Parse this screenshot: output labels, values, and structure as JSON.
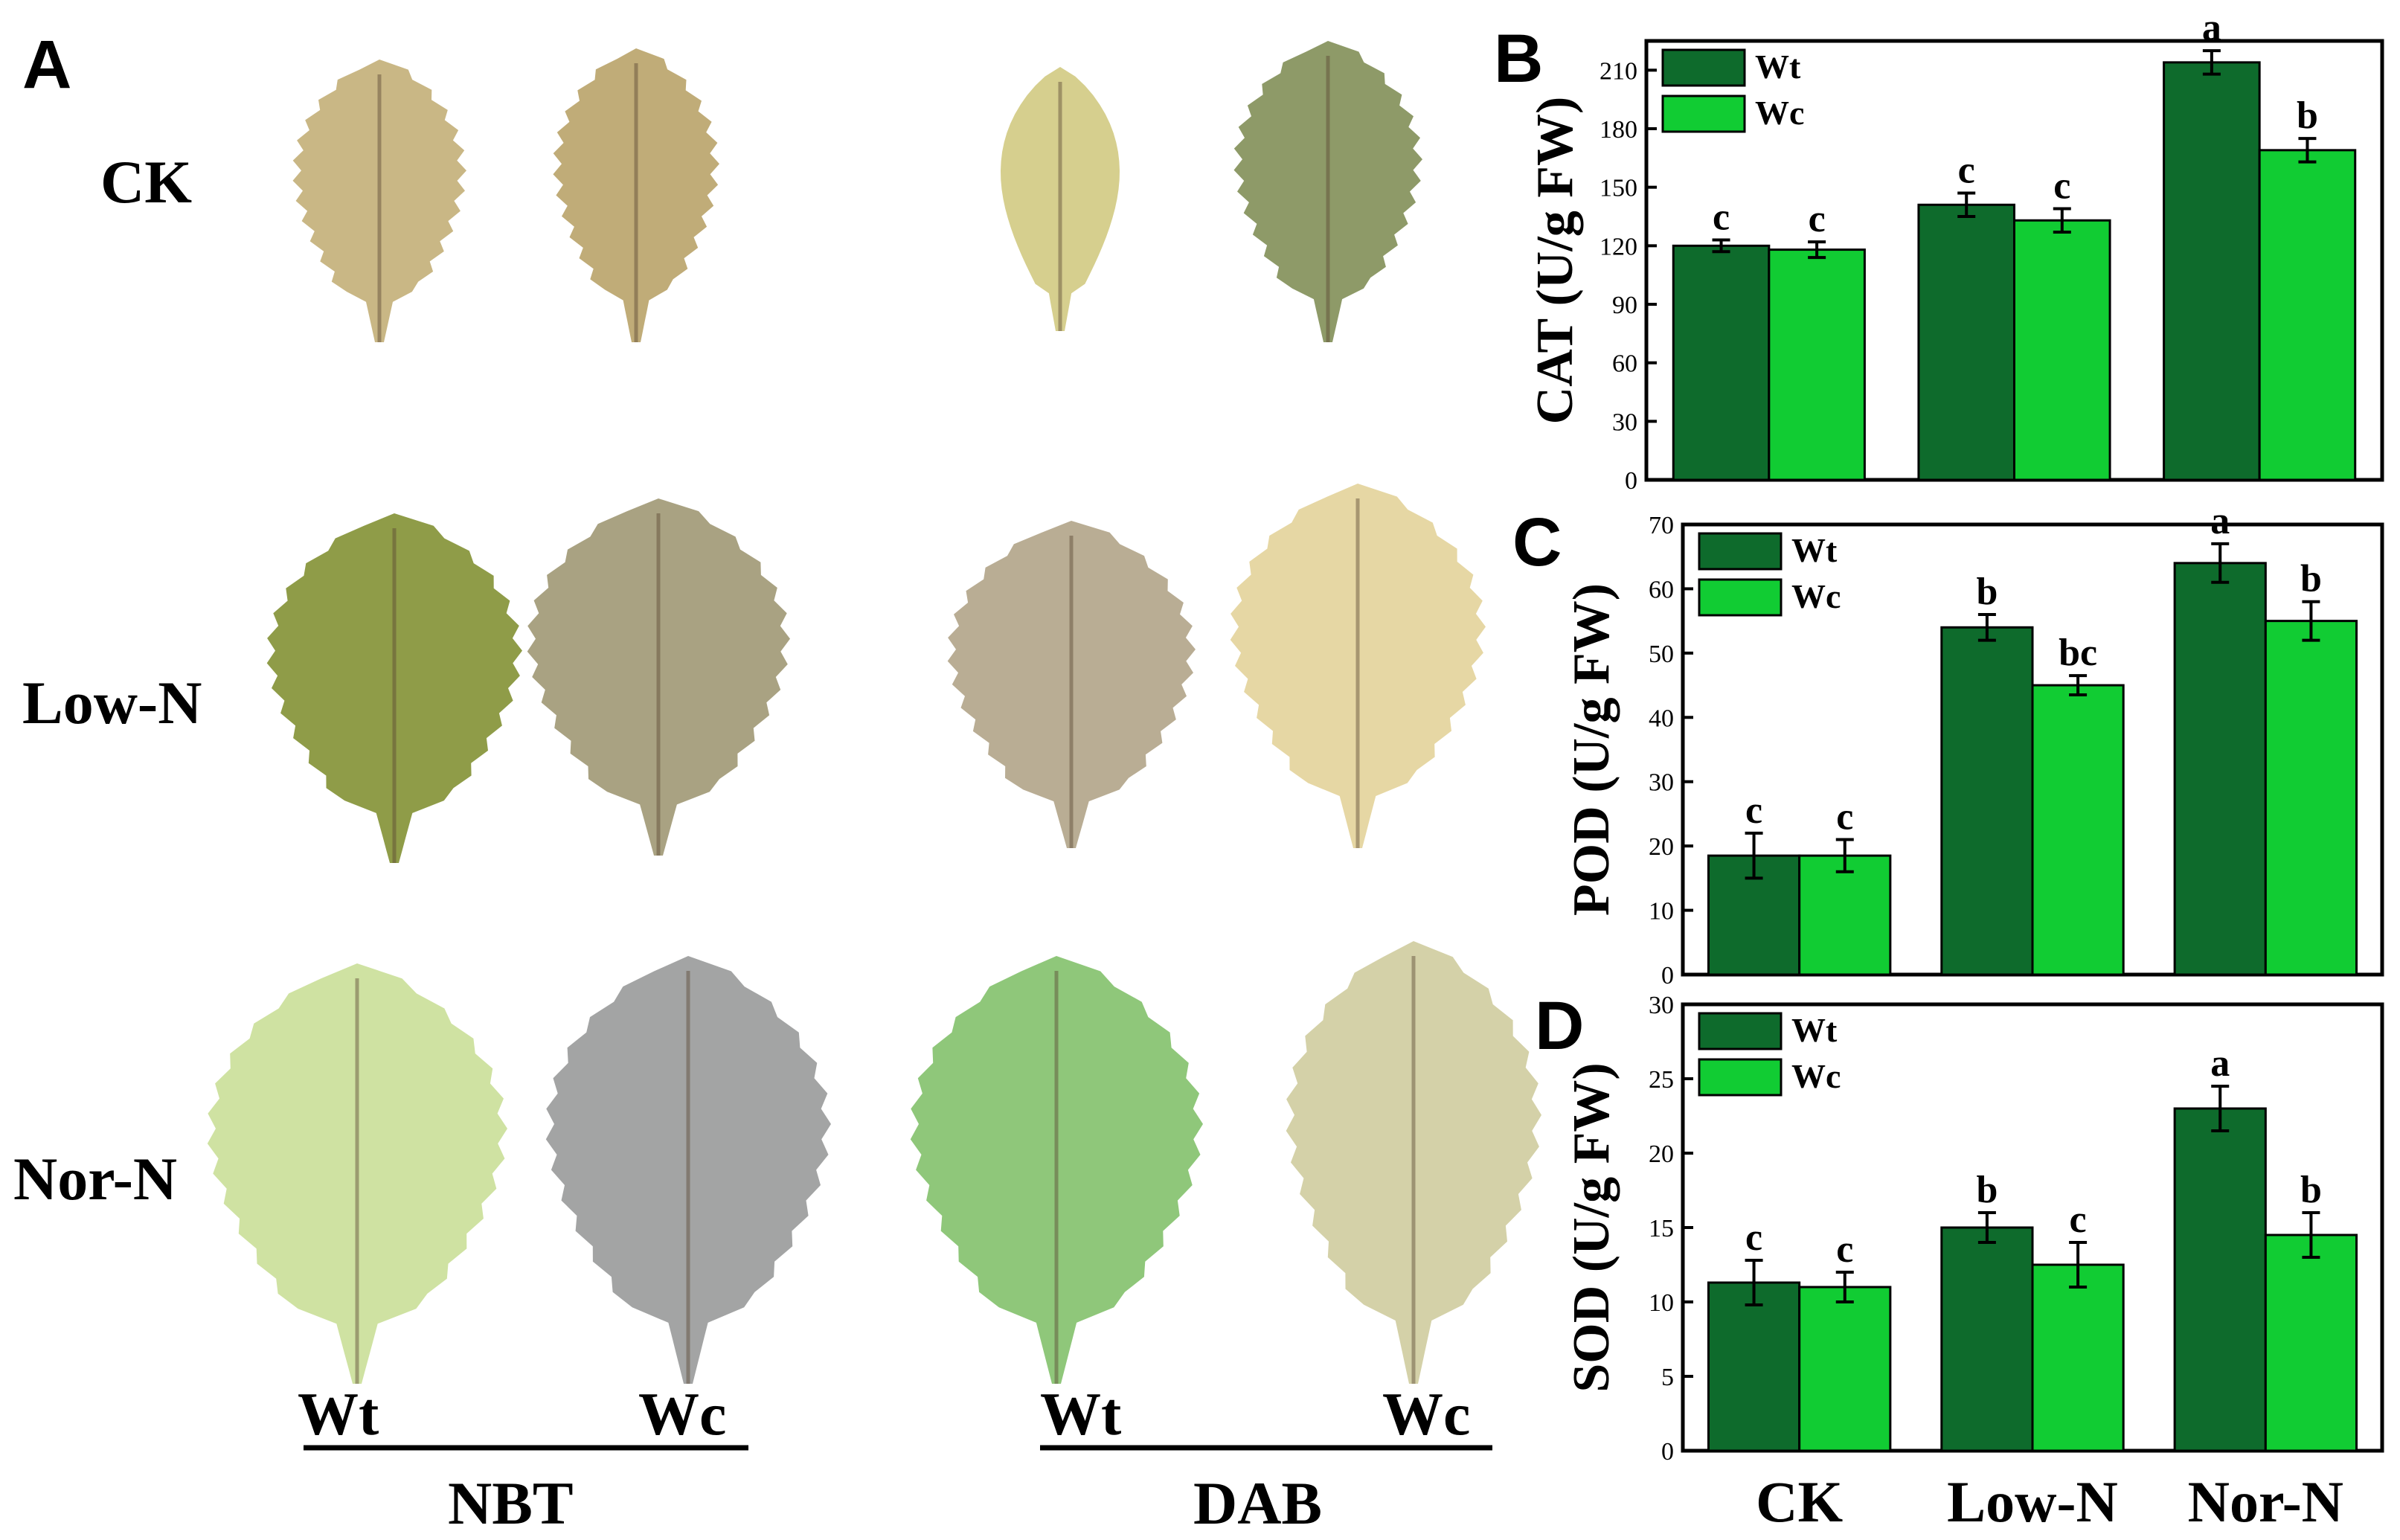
{
  "panel_a": {
    "letter": "A",
    "rows": [
      "CK",
      "Low-N",
      "Nor-N"
    ],
    "group_labels": {
      "nbt": {
        "wt": "Wt",
        "wc": "Wc",
        "stain": "NBT"
      },
      "dab": {
        "wt": "Wt",
        "wc": "Wc",
        "stain": "DAB"
      }
    },
    "leaf_colors": {
      "ck_nbt_wt": "#c9b785",
      "ck_nbt_wc": "#c0ac78",
      "ck_dab_wt": "#d6cf8e",
      "ck_dab_wc": "#8e9a68",
      "low_nbt_wt": "#8f9c48",
      "low_nbt_wc": "#a9a282",
      "low_dab_wt": "#b9ad94",
      "low_dab_wc": "#e6d7a4",
      "nor_nbt_wt": "#cfe2a2",
      "nor_nbt_wc": "#a3a4a4",
      "nor_dab_wt": "#8fc77a",
      "nor_dab_wc": "#d4d1a8"
    }
  },
  "colors": {
    "wt": "#0e6b2c",
    "wc": "#11cc33"
  },
  "chart_data": [
    {
      "panel": "B",
      "type": "bar",
      "ylabel": "CAT (U/g FW)",
      "categories": [
        "CK",
        "Low-N",
        "Nor-N"
      ],
      "yticks": [
        "0",
        "30",
        "60",
        "90",
        "120",
        "150",
        "180",
        "210"
      ],
      "ylim": [
        0,
        225
      ],
      "series": [
        {
          "name": "Wt",
          "values": [
            120,
            141,
            214
          ],
          "errors": [
            3,
            6,
            6
          ],
          "labels": [
            "c",
            "c",
            "a"
          ]
        },
        {
          "name": "Wc",
          "values": [
            118,
            133,
            169
          ],
          "errors": [
            4,
            6,
            6
          ],
          "labels": [
            "c",
            "c",
            "b"
          ]
        }
      ],
      "show_xlabels": false
    },
    {
      "panel": "C",
      "type": "bar",
      "ylabel": "POD (U/g FW)",
      "categories": [
        "CK",
        "Low-N",
        "Nor-N"
      ],
      "yticks": [
        "0",
        "10",
        "20",
        "30",
        "40",
        "50",
        "60",
        "70"
      ],
      "ylim": [
        0,
        70
      ],
      "series": [
        {
          "name": "Wt",
          "values": [
            18.5,
            54,
            64
          ],
          "errors": [
            3.5,
            2,
            3
          ],
          "labels": [
            "c",
            "b",
            "a"
          ]
        },
        {
          "name": "Wc",
          "values": [
            18.5,
            45,
            55
          ],
          "errors": [
            2.5,
            1.5,
            3
          ],
          "labels": [
            "c",
            "bc",
            "b"
          ]
        }
      ],
      "show_xlabels": false
    },
    {
      "panel": "D",
      "type": "bar",
      "ylabel": "SOD (U/g FW)",
      "categories": [
        "CK",
        "Low-N",
        "Nor-N"
      ],
      "yticks": [
        "0",
        "5",
        "10",
        "15",
        "20",
        "25",
        "30"
      ],
      "ylim": [
        0,
        30
      ],
      "series": [
        {
          "name": "Wt",
          "values": [
            11.3,
            15,
            23
          ],
          "errors": [
            1.5,
            1,
            1.5
          ],
          "labels": [
            "c",
            "b",
            "a"
          ]
        },
        {
          "name": "Wc",
          "values": [
            11,
            12.5,
            14.5
          ],
          "errors": [
            1,
            1.5,
            1.5
          ],
          "labels": [
            "c",
            "c",
            "b"
          ]
        }
      ],
      "show_xlabels": true
    }
  ]
}
